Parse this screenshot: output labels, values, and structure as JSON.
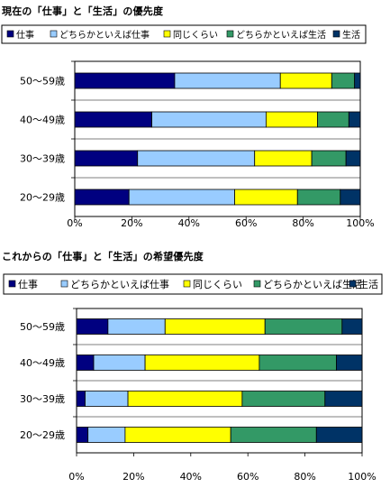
{
  "colors": {
    "仕事": "#000080",
    "どちらかといえば仕事": "#99ccff",
    "同じくらい": "#ffff00",
    "どちらかといえば生活": "#339966",
    "生活": "#003366"
  },
  "chart_data": [
    {
      "type": "bar",
      "orientation": "horizontal",
      "stacked": true,
      "title": "現在の「仕事」と「生活」の優先度",
      "categories": [
        "50～59歳",
        "40～49歳",
        "30～39歳",
        "20～29歳"
      ],
      "series": [
        {
          "name": "仕事",
          "values": [
            35,
            27,
            22,
            19
          ]
        },
        {
          "name": "どちらかといえば仕事",
          "values": [
            37,
            40,
            41,
            37
          ]
        },
        {
          "name": "同じくらい",
          "values": [
            18,
            18,
            20,
            22
          ]
        },
        {
          "name": "どちらかといえば生活",
          "values": [
            8,
            11,
            12,
            15
          ]
        },
        {
          "name": "生活",
          "values": [
            2,
            4,
            5,
            7
          ]
        }
      ],
      "xlim": [
        0,
        100
      ],
      "xticks": [
        "0%",
        "20%",
        "40%",
        "60%",
        "80%",
        "100%"
      ],
      "legend": "top",
      "grid": true
    },
    {
      "type": "bar",
      "orientation": "horizontal",
      "stacked": true,
      "title": "これからの「仕事」と「生活」の希望優先度",
      "categories": [
        "50～59歳",
        "40～49歳",
        "30～39歳",
        "20～29歳"
      ],
      "series": [
        {
          "name": "仕事",
          "values": [
            11,
            6,
            3,
            4
          ]
        },
        {
          "name": "どちらかといえば仕事",
          "values": [
            20,
            18,
            15,
            13
          ]
        },
        {
          "name": "同じくらい",
          "values": [
            35,
            40,
            40,
            37
          ]
        },
        {
          "name": "どちらかといえば生活",
          "values": [
            27,
            27,
            29,
            30
          ]
        },
        {
          "name": "生活",
          "values": [
            7,
            9,
            13,
            16
          ]
        }
      ],
      "xlim": [
        0,
        100
      ],
      "xticks": [
        "0%",
        "20%",
        "40%",
        "60%",
        "80%",
        "100%"
      ],
      "legend": "top",
      "grid": true
    }
  ]
}
